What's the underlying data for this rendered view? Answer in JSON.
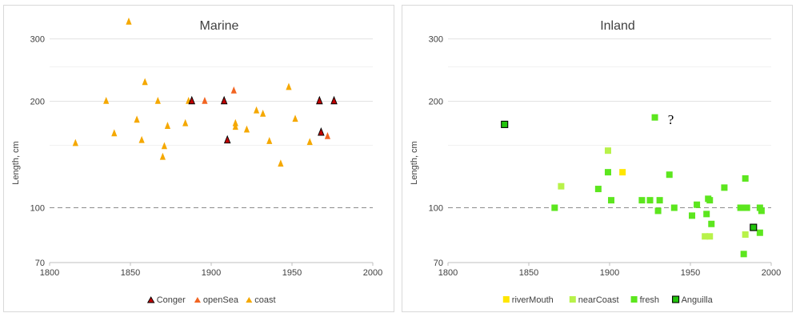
{
  "chart_data": [
    {
      "type": "scatter",
      "title": "Marine",
      "ylabel": "Length, cm",
      "xlabel": "",
      "xlim": [
        1800,
        2000
      ],
      "ylim": [
        70,
        350
      ],
      "yscale": "log",
      "x_ticks": [
        "1800",
        "1850",
        "1900",
        "1950",
        "2000"
      ],
      "y_ticks": [
        "70",
        "100",
        "200",
        "300"
      ],
      "reference_line": 100,
      "grid": "horizontal",
      "legend_position": "bottom",
      "series": [
        {
          "name": "Conger",
          "marker": "triangle",
          "color": "#c00000",
          "edge": "#000000",
          "points": [
            [
              1888,
              200
            ],
            [
              1908,
              200
            ],
            [
              1910,
              155
            ],
            [
              1967,
              200
            ],
            [
              1968,
              163
            ],
            [
              1976,
              200
            ]
          ]
        },
        {
          "name": "openSea",
          "marker": "triangle",
          "color": "#f26522",
          "points": [
            [
              1896,
              200
            ],
            [
              1914,
              214
            ],
            [
              1972,
              159
            ]
          ]
        },
        {
          "name": "coast",
          "marker": "triangle",
          "color": "#f5a800",
          "points": [
            [
              1816,
              152
            ],
            [
              1835,
              200
            ],
            [
              1840,
              162
            ],
            [
              1849,
              335
            ],
            [
              1854,
              177
            ],
            [
              1857,
              155
            ],
            [
              1859,
              226
            ],
            [
              1867,
              200
            ],
            [
              1870,
              139
            ],
            [
              1871,
              149
            ],
            [
              1873,
              170
            ],
            [
              1884,
              173
            ],
            [
              1886,
              200
            ],
            [
              1915,
              169
            ],
            [
              1915,
              173
            ],
            [
              1922,
              166
            ],
            [
              1928,
              188
            ],
            [
              1932,
              184
            ],
            [
              1936,
              154
            ],
            [
              1943,
              133
            ],
            [
              1948,
              219
            ],
            [
              1952,
              178
            ],
            [
              1961,
              153
            ]
          ]
        }
      ]
    },
    {
      "type": "scatter",
      "title": "Inland",
      "ylabel": "Length, cm",
      "xlabel": "",
      "xlim": [
        1800,
        2000
      ],
      "ylim": [
        70,
        350
      ],
      "yscale": "log",
      "x_ticks": [
        "1800",
        "1850",
        "1900",
        "1950",
        "2000"
      ],
      "y_ticks": [
        "70",
        "100",
        "200",
        "300"
      ],
      "reference_line": 100,
      "grid": "horizontal",
      "legend_position": "bottom",
      "annotations": [
        {
          "text": "?",
          "x": 1936,
          "y": 178
        }
      ],
      "series": [
        {
          "name": "riverMouth",
          "marker": "square",
          "color": "#ffe600",
          "points": [
            [
              1908,
              126
            ]
          ]
        },
        {
          "name": "nearCoast",
          "marker": "square",
          "color": "#b8f24a",
          "points": [
            [
              1870,
              115
            ],
            [
              1899,
              145
            ],
            [
              1959,
              83
            ],
            [
              1962,
              83
            ],
            [
              1984,
              84
            ]
          ]
        },
        {
          "name": "fresh",
          "marker": "square",
          "color": "#5ce61e",
          "points": [
            [
              1866,
              100
            ],
            [
              1893,
              113
            ],
            [
              1899,
              126
            ],
            [
              1901,
              105
            ],
            [
              1920,
              105
            ],
            [
              1925,
              105
            ],
            [
              1928,
              180
            ],
            [
              1930,
              98
            ],
            [
              1931,
              105
            ],
            [
              1937,
              124
            ],
            [
              1940,
              100
            ],
            [
              1951,
              95
            ],
            [
              1954,
              102
            ],
            [
              1960,
              96
            ],
            [
              1961,
              106
            ],
            [
              1962,
              105
            ],
            [
              1963,
              90
            ],
            [
              1971,
              114
            ],
            [
              1981,
              100
            ],
            [
              1982,
              100
            ],
            [
              1983,
              74
            ],
            [
              1984,
              121
            ],
            [
              1985,
              100
            ],
            [
              1993,
              100
            ],
            [
              1994,
              98
            ],
            [
              1993,
              85
            ]
          ]
        },
        {
          "name": "Anguilla",
          "marker": "square",
          "color": "#22c40c",
          "edge": "#000000",
          "points": [
            [
              1835,
              172
            ],
            [
              1989,
              88
            ]
          ]
        }
      ]
    }
  ]
}
